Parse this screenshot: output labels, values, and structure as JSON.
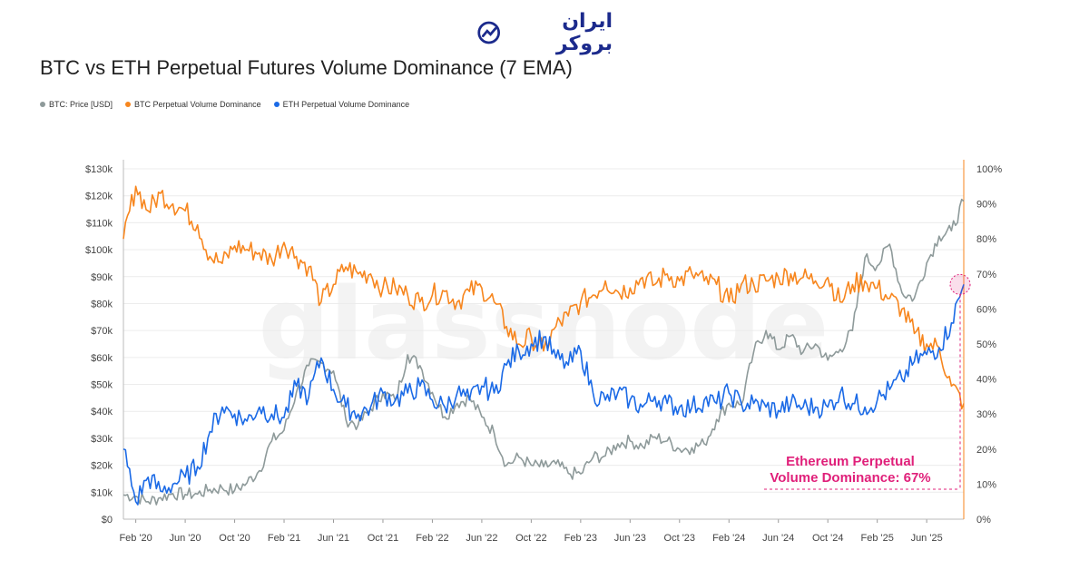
{
  "brand": {
    "logo_text": "ایران بروکر"
  },
  "title": "BTC vs ETH Perpetual Futures Volume Dominance (7 EMA)",
  "colors": {
    "btc_price": "#8e9a9a",
    "btc_dom": "#f7861e",
    "eth_dom": "#1b6ae6",
    "annotation": "#e0207a"
  },
  "chart_data": {
    "type": "line",
    "title": "BTC vs ETH Perpetual Futures Volume Dominance (7 EMA)",
    "watermark": "glassnode",
    "legend": [
      "BTC: Price [USD]",
      "BTC Perpetual Volume Dominance",
      "ETH Perpetual Volume Dominance"
    ],
    "x_ticks": [
      "Feb '20",
      "Jun '20",
      "Oct '20",
      "Feb '21",
      "Jun '21",
      "Oct '21",
      "Feb '22",
      "Jun '22",
      "Oct '22",
      "Feb '23",
      "Jun '23",
      "Oct '23",
      "Feb '24",
      "Jun '24",
      "Oct '24",
      "Feb '25",
      "Jun '25"
    ],
    "y_left_ticks": [
      "$0",
      "$10k",
      "$20k",
      "$30k",
      "$40k",
      "$50k",
      "$60k",
      "$70k",
      "$80k",
      "$90k",
      "$100k",
      "$110k",
      "$120k",
      "$130k"
    ],
    "y_right_ticks": [
      "0%",
      "10%",
      "20%",
      "30%",
      "40%",
      "50%",
      "60%",
      "70%",
      "80%",
      "90%",
      "100%"
    ],
    "ylim_left": [
      0,
      130000
    ],
    "ylim_right": [
      0,
      100
    ],
    "x_range_months": [
      0,
      68
    ],
    "series": [
      {
        "name": "BTC: Price [USD]",
        "axis": "left",
        "points": [
          [
            0,
            9000
          ],
          [
            1,
            8500
          ],
          [
            2,
            6500
          ],
          [
            3,
            8000
          ],
          [
            4,
            9500
          ],
          [
            5,
            9200
          ],
          [
            6,
            9300
          ],
          [
            7,
            11000
          ],
          [
            8,
            11500
          ],
          [
            9,
            10700
          ],
          [
            10,
            13500
          ],
          [
            11,
            18000
          ],
          [
            12,
            29000
          ],
          [
            13,
            33000
          ],
          [
            14,
            47000
          ],
          [
            15,
            57000
          ],
          [
            16,
            58000
          ],
          [
            17,
            55000
          ],
          [
            18,
            37000
          ],
          [
            19,
            35000
          ],
          [
            20,
            41000
          ],
          [
            21,
            47000
          ],
          [
            22,
            44000
          ],
          [
            23,
            61000
          ],
          [
            24,
            57000
          ],
          [
            25,
            47000
          ],
          [
            26,
            38000
          ],
          [
            27,
            43000
          ],
          [
            28,
            45000
          ],
          [
            29,
            38000
          ],
          [
            30,
            32000
          ],
          [
            31,
            20000
          ],
          [
            32,
            23000
          ],
          [
            33,
            20000
          ],
          [
            34,
            19500
          ],
          [
            35,
            20500
          ],
          [
            36,
            17000
          ],
          [
            37,
            16800
          ],
          [
            38,
            23000
          ],
          [
            39,
            23500
          ],
          [
            40,
            28000
          ],
          [
            41,
            29000
          ],
          [
            42,
            27000
          ],
          [
            43,
            30500
          ],
          [
            44,
            29000
          ],
          [
            45,
            26000
          ],
          [
            46,
            26500
          ],
          [
            47,
            28000
          ],
          [
            48,
            37000
          ],
          [
            49,
            43000
          ],
          [
            50,
            42500
          ],
          [
            51,
            62000
          ],
          [
            52,
            70000
          ],
          [
            53,
            63000
          ],
          [
            54,
            68000
          ],
          [
            55,
            62000
          ],
          [
            56,
            65000
          ],
          [
            57,
            59000
          ],
          [
            58,
            63000
          ],
          [
            59,
            70000
          ],
          [
            60,
            97000
          ],
          [
            61,
            94000
          ],
          [
            62,
            102000
          ],
          [
            63,
            84000
          ],
          [
            64,
            82000
          ],
          [
            65,
            95000
          ],
          [
            66,
            105000
          ],
          [
            67,
            107000
          ],
          [
            68,
            118000
          ]
        ]
      },
      {
        "name": "BTC Perpetual Volume Dominance",
        "axis": "right",
        "points": [
          [
            0,
            80
          ],
          [
            1,
            95
          ],
          [
            2,
            88
          ],
          [
            3,
            93
          ],
          [
            4,
            90
          ],
          [
            5,
            88
          ],
          [
            6,
            84
          ],
          [
            7,
            75
          ],
          [
            8,
            73
          ],
          [
            9,
            78
          ],
          [
            10,
            77
          ],
          [
            11,
            76
          ],
          [
            12,
            74
          ],
          [
            13,
            79
          ],
          [
            14,
            75
          ],
          [
            15,
            72
          ],
          [
            16,
            62
          ],
          [
            17,
            67
          ],
          [
            18,
            72
          ],
          [
            19,
            70
          ],
          [
            20,
            70
          ],
          [
            21,
            66
          ],
          [
            22,
            66
          ],
          [
            23,
            64
          ],
          [
            24,
            62
          ],
          [
            25,
            64
          ],
          [
            26,
            65
          ],
          [
            27,
            62
          ],
          [
            28,
            65
          ],
          [
            29,
            66
          ],
          [
            30,
            62
          ],
          [
            31,
            55
          ],
          [
            32,
            50
          ],
          [
            33,
            52
          ],
          [
            34,
            48
          ],
          [
            35,
            55
          ],
          [
            36,
            58
          ],
          [
            37,
            62
          ],
          [
            38,
            64
          ],
          [
            39,
            68
          ],
          [
            40,
            65
          ],
          [
            41,
            66
          ],
          [
            42,
            69
          ],
          [
            43,
            67
          ],
          [
            44,
            70
          ],
          [
            45,
            68
          ],
          [
            46,
            70
          ],
          [
            47,
            68
          ],
          [
            48,
            67
          ],
          [
            49,
            62
          ],
          [
            50,
            67
          ],
          [
            51,
            67
          ],
          [
            52,
            68
          ],
          [
            53,
            69
          ],
          [
            54,
            70
          ],
          [
            55,
            69
          ],
          [
            56,
            68
          ],
          [
            57,
            69
          ],
          [
            58,
            62
          ],
          [
            59,
            67
          ],
          [
            60,
            68
          ],
          [
            61,
            66
          ],
          [
            62,
            63
          ],
          [
            63,
            60
          ],
          [
            64,
            53
          ],
          [
            65,
            50
          ],
          [
            66,
            49
          ],
          [
            67,
            38
          ],
          [
            68,
            33
          ]
        ]
      },
      {
        "name": "ETH Perpetual Volume Dominance",
        "axis": "right",
        "points": [
          [
            0,
            20
          ],
          [
            1,
            5
          ],
          [
            2,
            12
          ],
          [
            3,
            8
          ],
          [
            4,
            10
          ],
          [
            5,
            12
          ],
          [
            6,
            15
          ],
          [
            7,
            25
          ],
          [
            8,
            32
          ],
          [
            9,
            30
          ],
          [
            10,
            28
          ],
          [
            11,
            32
          ],
          [
            12,
            30
          ],
          [
            13,
            29
          ],
          [
            14,
            38
          ],
          [
            15,
            35
          ],
          [
            16,
            46
          ],
          [
            17,
            37
          ],
          [
            18,
            32
          ],
          [
            19,
            30
          ],
          [
            20,
            32
          ],
          [
            21,
            36
          ],
          [
            22,
            34
          ],
          [
            23,
            36
          ],
          [
            24,
            38
          ],
          [
            25,
            34
          ],
          [
            26,
            32
          ],
          [
            27,
            36
          ],
          [
            28,
            34
          ],
          [
            29,
            38
          ],
          [
            30,
            36
          ],
          [
            31,
            44
          ],
          [
            32,
            48
          ],
          [
            33,
            50
          ],
          [
            34,
            52
          ],
          [
            35,
            46
          ],
          [
            36,
            44
          ],
          [
            37,
            48
          ],
          [
            38,
            36
          ],
          [
            39,
            34
          ],
          [
            40,
            36
          ],
          [
            41,
            34
          ],
          [
            42,
            32
          ],
          [
            43,
            35
          ],
          [
            44,
            33
          ],
          [
            45,
            32
          ],
          [
            46,
            32
          ],
          [
            47,
            34
          ],
          [
            48,
            33
          ],
          [
            49,
            36
          ],
          [
            50,
            33
          ],
          [
            51,
            33
          ],
          [
            52,
            32
          ],
          [
            53,
            31
          ],
          [
            54,
            33
          ],
          [
            55,
            32
          ],
          [
            56,
            32
          ],
          [
            57,
            32
          ],
          [
            58,
            36
          ],
          [
            59,
            33
          ],
          [
            60,
            32
          ],
          [
            61,
            34
          ],
          [
            62,
            37
          ],
          [
            63,
            40
          ],
          [
            64,
            45
          ],
          [
            65,
            47
          ],
          [
            66,
            49
          ],
          [
            67,
            56
          ],
          [
            68,
            67
          ]
        ]
      }
    ],
    "annotation": {
      "text_line1": "Ethereum Perpetual",
      "text_line2": "Volume Dominance: 67%",
      "value": 67
    }
  }
}
